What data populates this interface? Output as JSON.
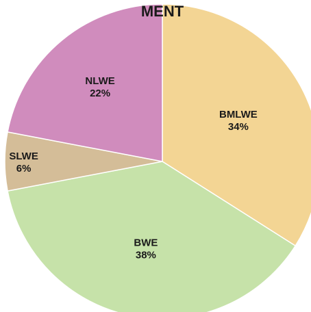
{
  "chart_data": {
    "type": "pie",
    "title": "MENT",
    "slices": [
      {
        "label": "BMLWE",
        "value": 34,
        "value_label": "34%",
        "color": "#f3d594"
      },
      {
        "label": "BWE",
        "value": 38,
        "value_label": "38%",
        "color": "#c6e2a9"
      },
      {
        "label": "SLWE",
        "value": 6,
        "value_label": "6%",
        "color": "#d4bd98"
      },
      {
        "label": "NLWE",
        "value": 22,
        "value_label": "22%",
        "color": "#d08cbd"
      }
    ]
  }
}
